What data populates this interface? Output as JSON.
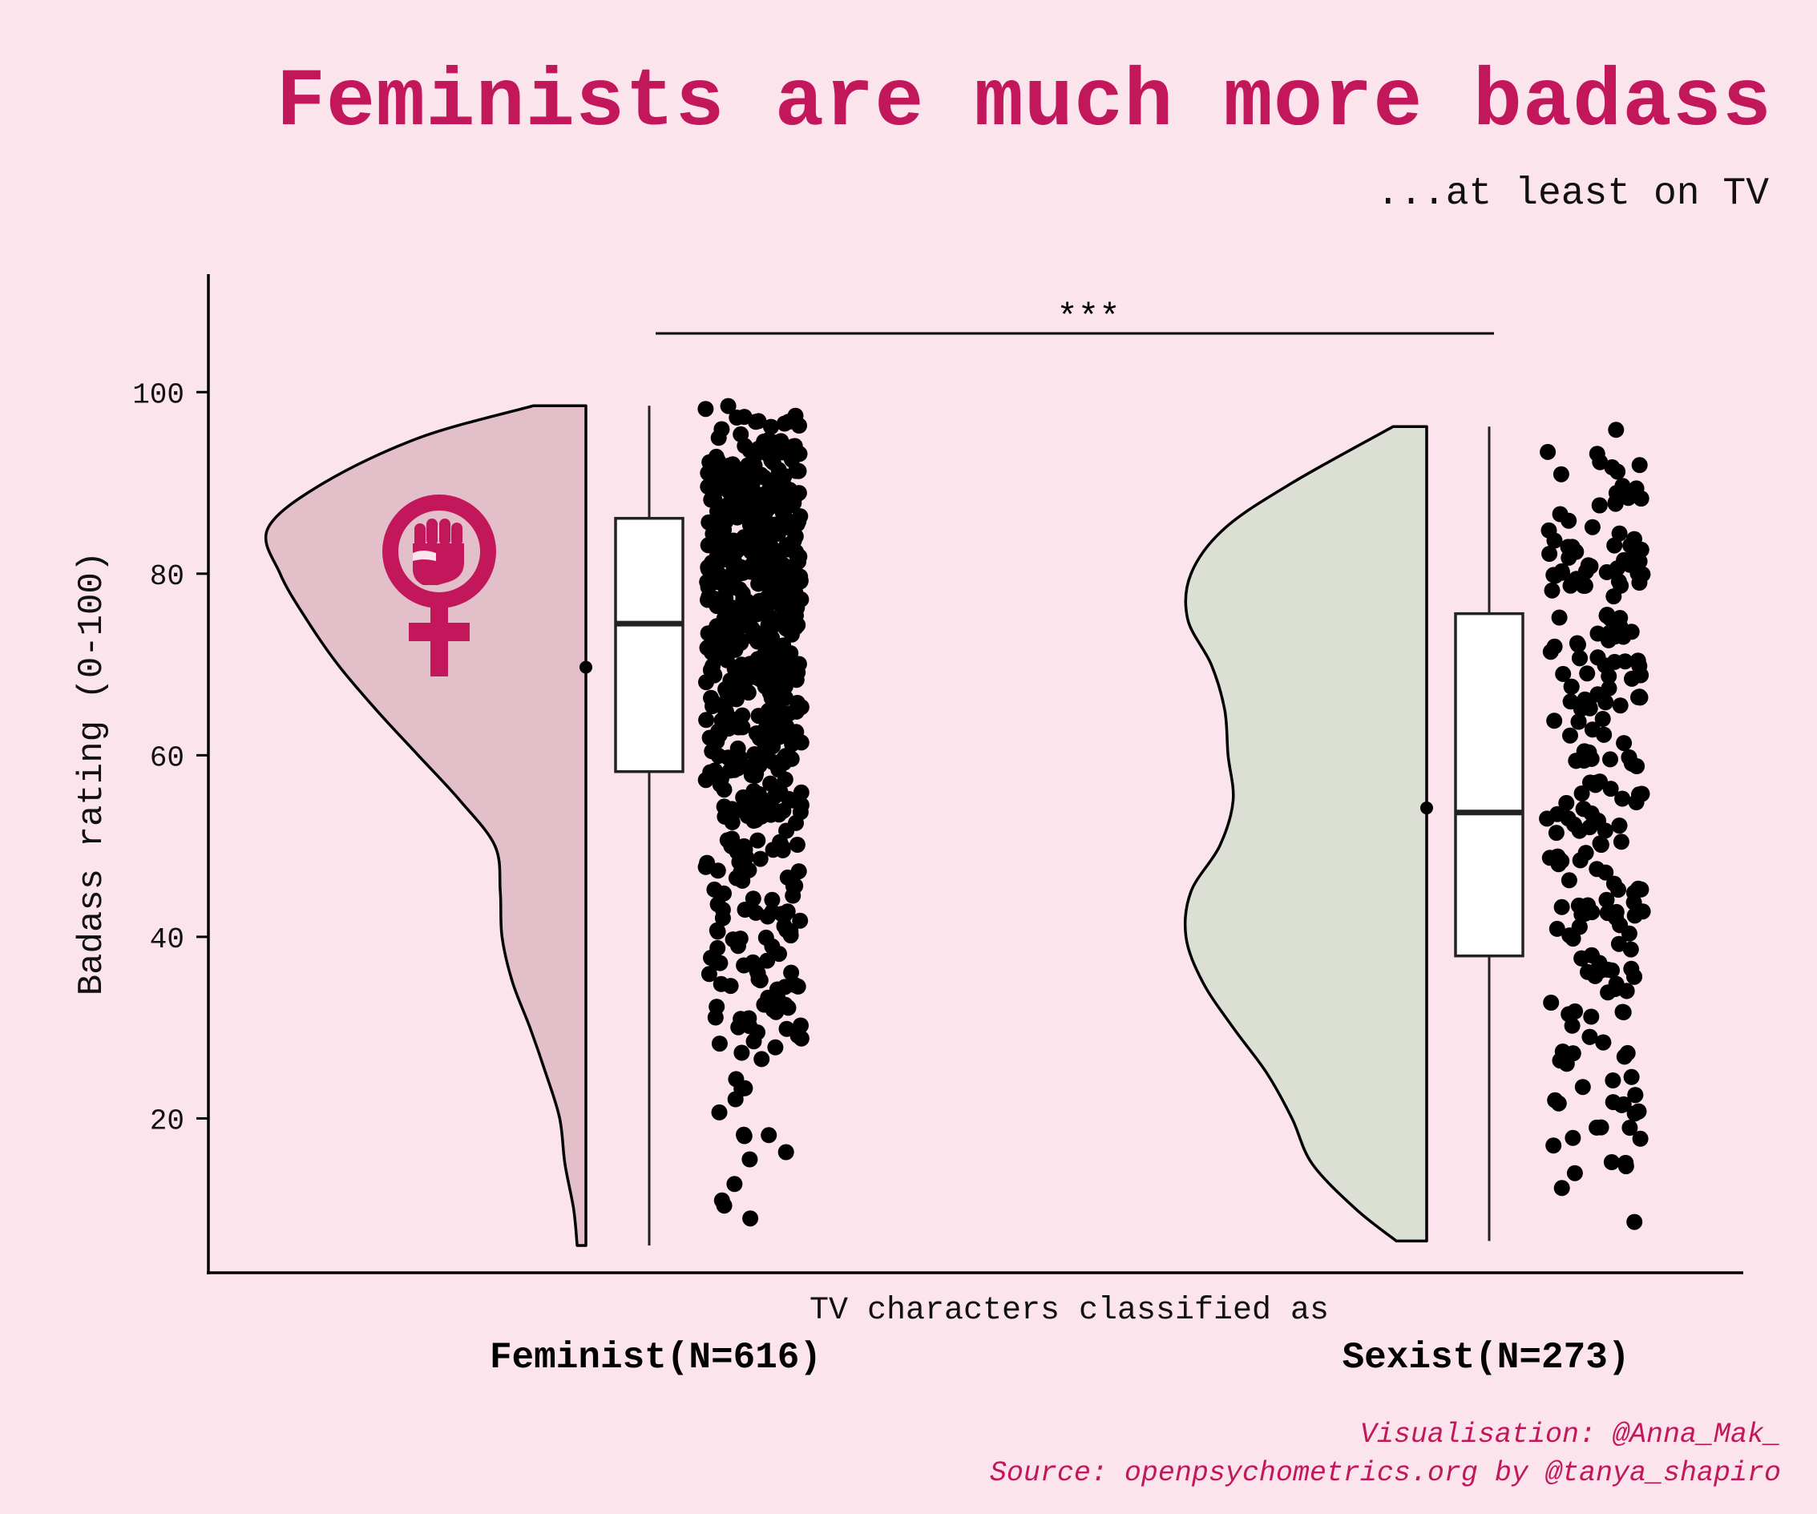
{
  "title": "Feminists are much more badass",
  "subtitle": "...at least on TV",
  "caption": {
    "line1": "Visualisation: @Anna_Mak_",
    "line2": "Source: openpsychometrics.org by @tanya_shapiro"
  },
  "colors": {
    "background": "#fce4ec",
    "accent": "#c2185b",
    "feminist_fill": "#e3c0c9",
    "sexist_fill": "#dcdfd3"
  },
  "icon": "feminist-fist-icon",
  "chart_data": {
    "type": "raincloud",
    "xlabel": "TV characters classified as",
    "ylabel": "Badass rating (0-100)",
    "ylim": [
      3,
      113
    ],
    "yticks": [
      20,
      40,
      60,
      80,
      100
    ],
    "significance": "***",
    "categories": [
      "Feminist(N=616)",
      "Sexist(N=273)"
    ],
    "series": [
      {
        "name": "Feminist(N=616)",
        "n": 616,
        "min": 6,
        "q1": 58.2,
        "median": 74.5,
        "q3": 86.1,
        "max": 98.5,
        "mean": 69.7,
        "jitter_range": [
          5.9,
          98.5
        ],
        "density": [
          [
            6,
            0.05
          ],
          [
            10,
            0.07
          ],
          [
            15,
            0.12
          ],
          [
            20,
            0.15
          ],
          [
            25,
            0.23
          ],
          [
            30,
            0.32
          ],
          [
            35,
            0.42
          ],
          [
            40,
            0.48
          ],
          [
            45,
            0.49
          ],
          [
            50,
            0.52
          ],
          [
            55,
            0.72
          ],
          [
            60,
            0.96
          ],
          [
            65,
            1.2
          ],
          [
            70,
            1.42
          ],
          [
            75,
            1.6
          ],
          [
            80,
            1.75
          ],
          [
            85,
            1.82
          ],
          [
            90,
            1.5
          ],
          [
            95,
            0.95
          ],
          [
            98.5,
            0.3
          ]
        ]
      },
      {
        "name": "Sexist(N=273)",
        "n": 273,
        "min": 6.5,
        "q1": 37.9,
        "median": 53.7,
        "q3": 75.6,
        "max": 96.2,
        "mean": 54.2,
        "jitter_range": [
          6.5,
          96.2
        ],
        "density": [
          [
            6.5,
            0.18
          ],
          [
            10,
            0.42
          ],
          [
            15,
            0.68
          ],
          [
            20,
            0.8
          ],
          [
            25,
            0.95
          ],
          [
            30,
            1.15
          ],
          [
            35,
            1.33
          ],
          [
            40,
            1.43
          ],
          [
            45,
            1.4
          ],
          [
            50,
            1.23
          ],
          [
            55,
            1.15
          ],
          [
            60,
            1.18
          ],
          [
            65,
            1.2
          ],
          [
            70,
            1.28
          ],
          [
            75,
            1.42
          ],
          [
            80,
            1.4
          ],
          [
            85,
            1.2
          ],
          [
            90,
            0.8
          ],
          [
            96.2,
            0.2
          ]
        ]
      }
    ]
  }
}
